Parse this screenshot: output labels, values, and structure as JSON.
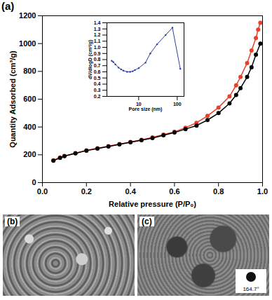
{
  "chart_data": [
    {
      "type": "line",
      "title": "(a)",
      "x_label": "Relative pressure (P/P₀)",
      "y_label": "Quantity Adsorbed (cm³/g)",
      "xlim": [
        0,
        1
      ],
      "ylim": [
        0,
        1200
      ],
      "xticks": [
        {
          "value": 0,
          "label": "0.0"
        },
        0.2,
        0.4,
        0.6,
        0.8,
        {
          "value": 1,
          "label": "1.0"
        }
      ],
      "yticks": [
        0,
        200,
        400,
        600,
        800,
        1000,
        1200
      ],
      "marker": "circle",
      "series": [
        {
          "color": "#e8402a",
          "x": [
            0.05,
            0.08,
            0.1,
            0.15,
            0.2,
            0.25,
            0.3,
            0.35,
            0.4,
            0.45,
            0.5,
            0.55,
            0.6,
            0.65,
            0.7,
            0.75,
            0.8,
            0.85,
            0.88,
            0.9,
            0.93,
            0.95,
            0.97,
            0.98,
            0.99
          ],
          "values": [
            160,
            180,
            192,
            212,
            232,
            247,
            262,
            277,
            292,
            308,
            325,
            345,
            365,
            395,
            430,
            480,
            540,
            620,
            700,
            760,
            860,
            950,
            1040,
            1100,
            1150
          ]
        },
        {
          "color": "#000000",
          "x": [
            0.05,
            0.08,
            0.1,
            0.15,
            0.2,
            0.25,
            0.3,
            0.35,
            0.4,
            0.45,
            0.5,
            0.55,
            0.6,
            0.65,
            0.7,
            0.75,
            0.8,
            0.85,
            0.88,
            0.9,
            0.93,
            0.95,
            0.97,
            0.99
          ],
          "values": [
            158,
            178,
            190,
            210,
            230,
            245,
            260,
            275,
            290,
            305,
            320,
            340,
            360,
            385,
            410,
            450,
            500,
            570,
            630,
            680,
            760,
            830,
            920,
            1000
          ]
        }
      ]
    },
    {
      "type": "line",
      "x_label": "Pore size (nm)",
      "y_label": "dV/dlogD (cm³/g)",
      "log": "x",
      "xlim": [
        1.5,
        150
      ],
      "ylim": [
        0.2,
        1.4
      ],
      "xticks": [
        10,
        100
      ],
      "yticks": [
        0.2,
        0.3,
        0.4,
        0.5,
        0.6,
        0.7,
        0.8,
        0.9,
        {
          "value": 1,
          "label": "1.0"
        },
        1.1,
        1.2,
        1.3,
        1.4
      ],
      "marker": "circle",
      "series": [
        {
          "color": "#2c3fa8",
          "x": [
            2,
            2.2,
            2.5,
            3,
            3.5,
            4,
            5,
            6,
            7,
            8,
            10,
            15,
            20,
            30,
            50,
            75,
            120
          ],
          "values": [
            0.78,
            0.76,
            0.72,
            0.67,
            0.64,
            0.62,
            0.6,
            0.6,
            0.61,
            0.63,
            0.66,
            0.75,
            0.9,
            1.05,
            1.2,
            1.32,
            0.65
          ]
        }
      ]
    }
  ],
  "images": [
    {
      "label": "(b)"
    },
    {
      "label": "(c)",
      "annotation": "164.7°"
    }
  ]
}
